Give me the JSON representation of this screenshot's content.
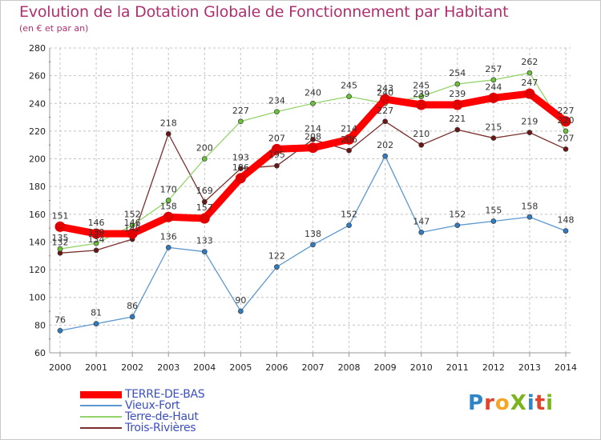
{
  "title": "Evolution de la Dotation Globale de Fonctionnement par Habitant",
  "subtitle": "(en € et par an)",
  "logo": {
    "text": "ProXiti",
    "letters": [
      "P",
      "r",
      "o",
      "X",
      "i",
      "t",
      "i"
    ],
    "colors": [
      "#2e86c8",
      "#e0442c",
      "#f5a623",
      "#7ab51d",
      "#2e86c8",
      "#e0442c",
      "#7ab51d"
    ]
  },
  "chart_data": {
    "type": "line",
    "title": "Evolution de la Dotation Globale de Fonctionnement par Habitant",
    "subtitle": "(en € et par an)",
    "xlabel": "",
    "ylabel": "",
    "ylim": [
      60,
      280
    ],
    "yticks": [
      60,
      80,
      100,
      120,
      140,
      160,
      180,
      200,
      220,
      240,
      260,
      280
    ],
    "x": [
      2000,
      2001,
      2002,
      2003,
      2004,
      2005,
      2006,
      2007,
      2008,
      2009,
      2010,
      2011,
      2012,
      2013,
      2014
    ],
    "grid": true,
    "legend_position": "bottom-left",
    "series": [
      {
        "name": "Trois-Rivières",
        "color": "#7a2f2f",
        "marker": "#6b1515",
        "values": [
          132,
          134,
          142,
          218,
          169,
          193,
          195,
          214,
          206,
          227,
          210,
          221,
          215,
          219,
          207
        ]
      },
      {
        "name": "Terre-de-Haut",
        "color": "#92d46a",
        "marker": "#6bc23a",
        "values": [
          135,
          139,
          152,
          170,
          200,
          227,
          234,
          240,
          245,
          240,
          245,
          254,
          257,
          262,
          220
        ]
      },
      {
        "name": "Vieux-Fort",
        "color": "#5b97d0",
        "marker": "#2f7cc4",
        "values": [
          76,
          81,
          86,
          136,
          133,
          90,
          122,
          138,
          152,
          202,
          147,
          152,
          155,
          158,
          148
        ]
      },
      {
        "name": "TERRE-DE-BAS",
        "color": "#ff0000",
        "marker": "#e00000",
        "values": [
          151,
          146,
          146,
          158,
          157,
          186,
          207,
          208,
          214,
          243,
          239,
          239,
          244,
          247,
          227
        ]
      }
    ]
  }
}
